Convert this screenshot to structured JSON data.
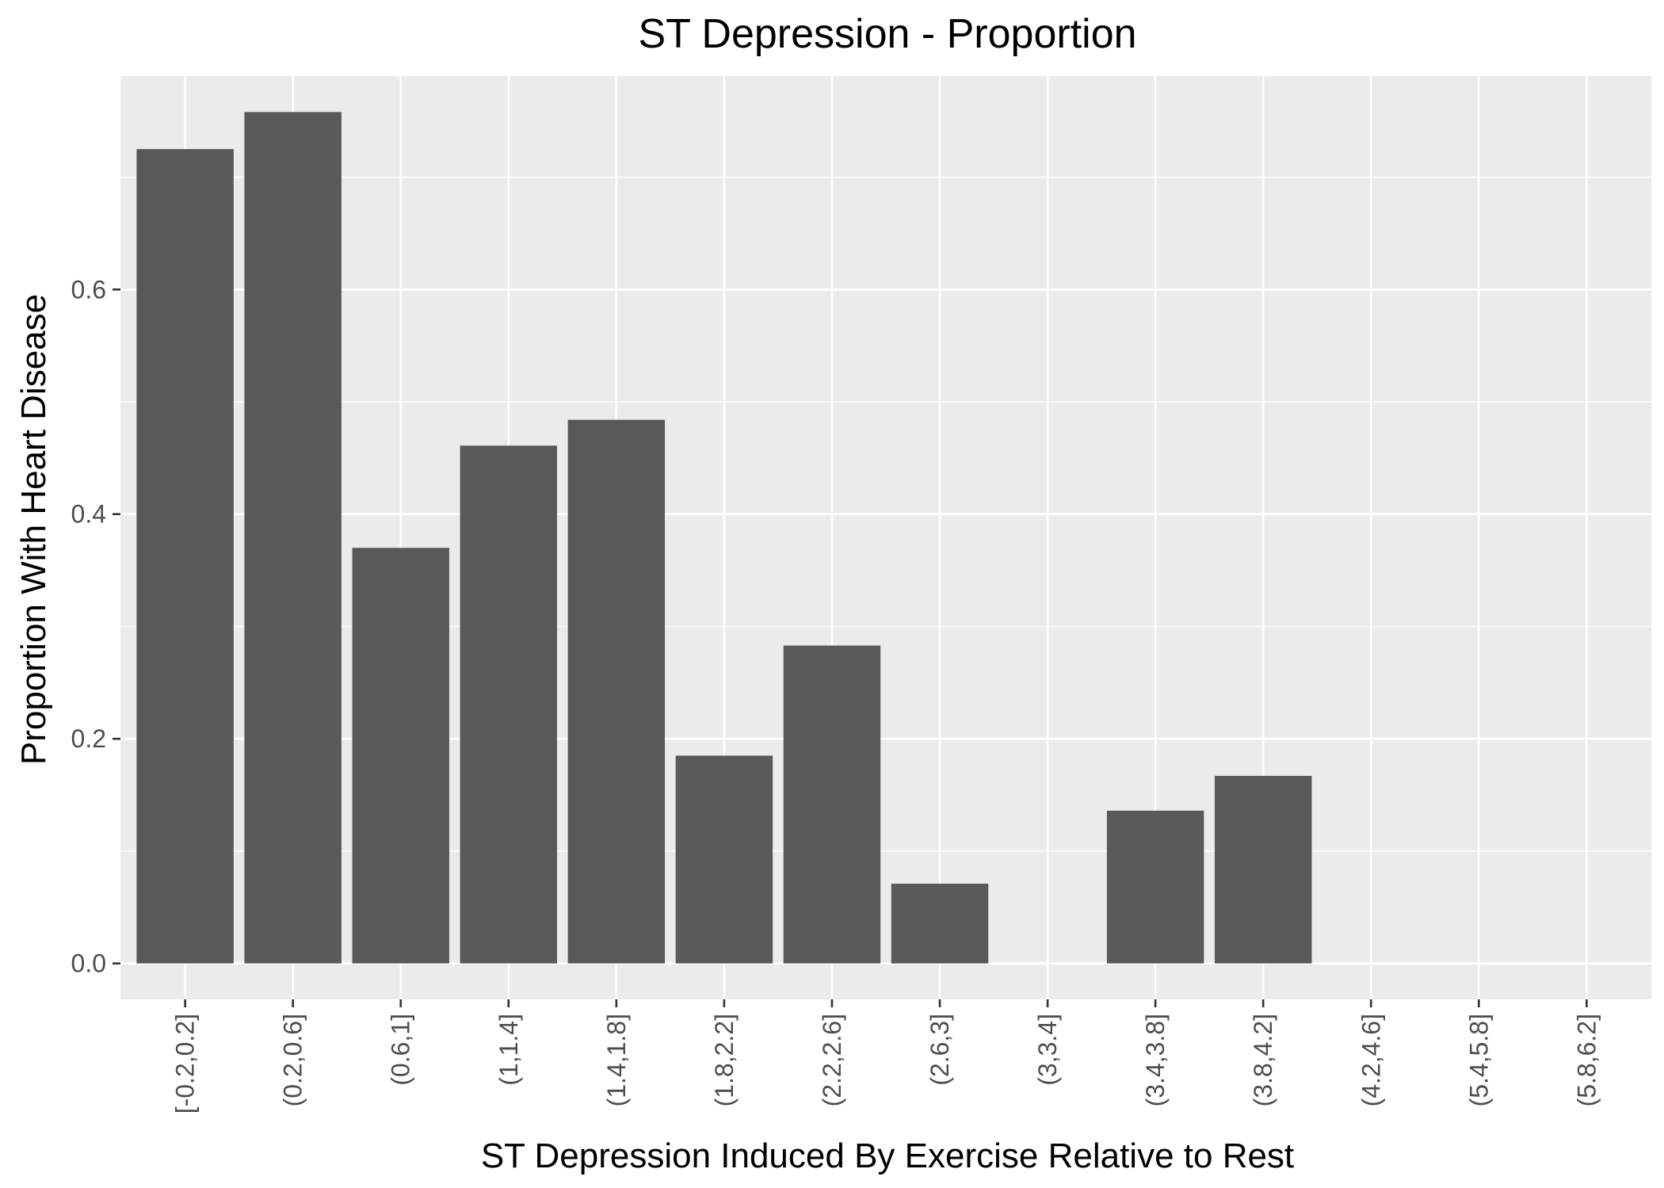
{
  "chart_data": {
    "type": "bar",
    "title": "ST Depression - Proportion",
    "xlabel": "ST Depression Induced By Exercise Relative to Rest",
    "ylabel": "Proportion With Heart Disease",
    "categories": [
      "[-0.2,0.2]",
      "(0.2,0.6]",
      "(0.6,1]",
      "(1,1.4]",
      "(1.4,1.8]",
      "(1.8,2.2]",
      "(2.2,2.6]",
      "(2.6,3]",
      "(3,3.4]",
      "(3.4,3.8]",
      "(3.8,4.2]",
      "(4.2,4.6]",
      "(5.4,5.8]",
      "(5.8,6.2]"
    ],
    "values": [
      0.725,
      0.758,
      0.37,
      0.461,
      0.484,
      0.185,
      0.283,
      0.071,
      0.0,
      0.136,
      0.167,
      0.0,
      0.0,
      0.0
    ],
    "ylim": [
      -0.032,
      0.79
    ],
    "yticks": [
      0.0,
      0.2,
      0.4,
      0.6
    ],
    "ytick_labels": [
      "0.0",
      "0.2",
      "0.4",
      "0.6"
    ],
    "grid": true,
    "legend": "none",
    "colors": {
      "bar": "#595959",
      "panel": "#ebebeb",
      "grid": "#ffffff",
      "tick_text": "#4d4d4d",
      "tick_mark": "#333333"
    }
  }
}
